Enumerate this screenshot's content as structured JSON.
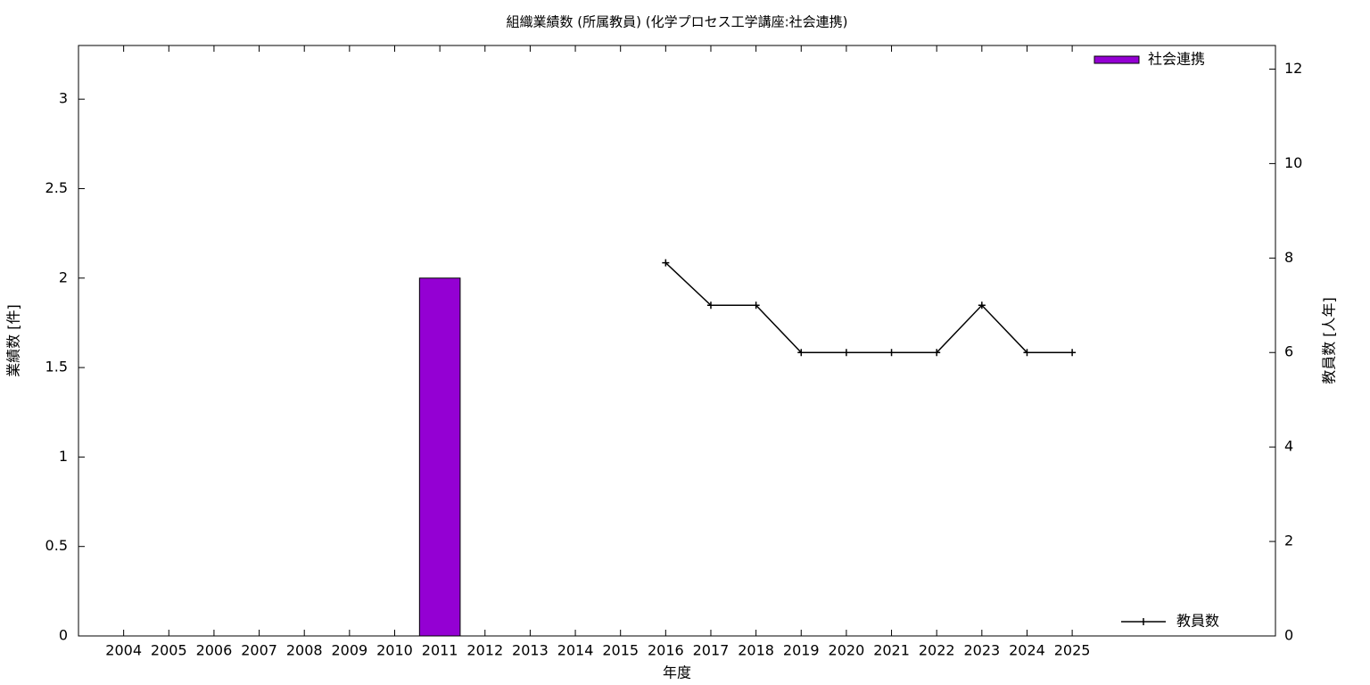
{
  "chart_data": {
    "type": "bar",
    "title": "組織業績数 (所属教員) (化学プロセス工学講座:社会連携)",
    "xlabel": "年度",
    "ylabel": "業績数 [件]",
    "y2label": "教員数 [人年]",
    "x": [
      2004,
      2005,
      2006,
      2007,
      2008,
      2009,
      2010,
      2011,
      2012,
      2013,
      2014,
      2015,
      2016,
      2017,
      2018,
      2019,
      2020,
      2021,
      2022,
      2023,
      2024,
      2025
    ],
    "xlim": [
      2003,
      2029.5
    ],
    "xticks": [
      2004,
      2005,
      2006,
      2007,
      2008,
      2009,
      2010,
      2011,
      2012,
      2013,
      2014,
      2015,
      2016,
      2017,
      2018,
      2019,
      2020,
      2021,
      2022,
      2023,
      2024,
      2025
    ],
    "ylim": [
      0,
      3.3
    ],
    "yticks": [
      0,
      0.5,
      1,
      1.5,
      2,
      2.5,
      3
    ],
    "y2lim": [
      0,
      12.5
    ],
    "y2ticks": [
      0,
      2,
      4,
      6,
      8,
      10,
      12
    ],
    "series": [
      {
        "name": "社会連携",
        "type": "bar",
        "color": "#9400d3",
        "legend": "top right",
        "values": [
          0,
          0,
          0,
          0,
          0,
          0,
          0,
          2,
          0,
          0,
          0,
          0,
          0,
          0,
          0,
          0,
          0,
          0,
          0,
          0,
          0,
          0
        ]
      },
      {
        "name": "教員数",
        "type": "line",
        "axis": "y2",
        "color": "#000000",
        "legend": "bottom right",
        "values": [
          null,
          null,
          null,
          null,
          null,
          null,
          null,
          null,
          null,
          null,
          null,
          null,
          7.9,
          7,
          7,
          6,
          6,
          6,
          6,
          7,
          6,
          6
        ]
      }
    ]
  }
}
